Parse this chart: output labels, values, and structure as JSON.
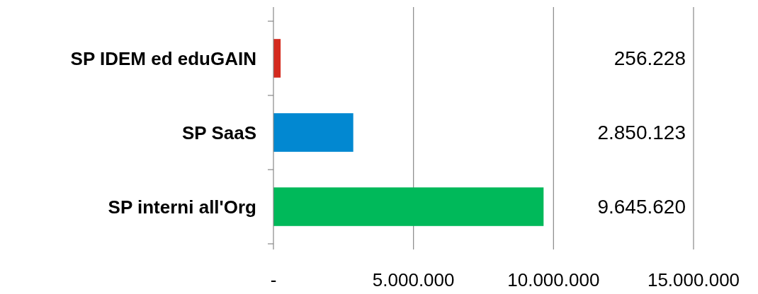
{
  "chart_data": {
    "type": "bar",
    "orientation": "horizontal",
    "categories": [
      "SP IDEM ed eduGAIN",
      "SP SaaS",
      "SP interni all'Org"
    ],
    "values": [
      256228,
      2850123,
      9645620
    ],
    "colors": [
      "#d42a1e",
      "#0288d1",
      "#00b95a"
    ],
    "value_labels": [
      "256.228",
      "2.850.123",
      "9.645.620"
    ],
    "xlim": [
      0,
      15000000
    ],
    "xticks": [
      {
        "value": 0,
        "label": "-"
      },
      {
        "value": 5000000,
        "label": "5.000.000"
      },
      {
        "value": 10000000,
        "label": "10.000.000"
      },
      {
        "value": 15000000,
        "label": "15.000.000"
      }
    ],
    "grid": "x"
  }
}
